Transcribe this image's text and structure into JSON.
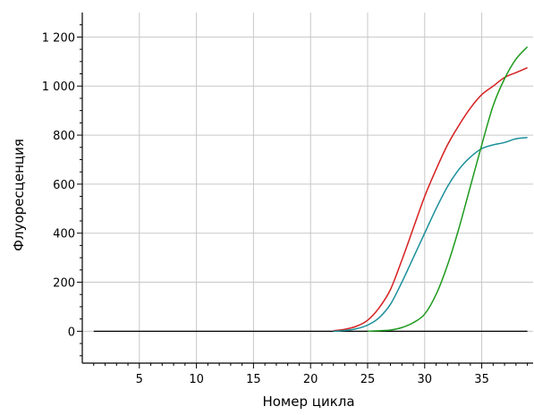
{
  "chart_data": {
    "type": "line",
    "title": "",
    "xlabel": "Номер цикла",
    "ylabel": "Флуоресценция",
    "xlim": [
      0,
      39.5
    ],
    "ylim": [
      -130,
      1300
    ],
    "x_ticks": [
      5,
      10,
      15,
      20,
      25,
      30,
      35
    ],
    "x_tick_labels": [
      "5",
      "10",
      "15",
      "20",
      "25",
      "30",
      "35"
    ],
    "y_ticks": [
      0,
      200,
      400,
      600,
      800,
      1000,
      1200
    ],
    "y_tick_labels": [
      "0",
      "200",
      "400",
      "600",
      "800",
      "1 000",
      "1 200"
    ],
    "grid": true,
    "baseline": {
      "y": 0,
      "x_from": 1,
      "x_to": 39,
      "color": "#000000"
    },
    "series": [
      {
        "color": "#d62020",
        "x": [
          22,
          23,
          24,
          25,
          26,
          27,
          28,
          29,
          30,
          31,
          32,
          33,
          34,
          35,
          36,
          37,
          38,
          39
        ],
        "values": [
          2,
          8,
          20,
          45,
          95,
          170,
          290,
          420,
          550,
          660,
          760,
          840,
          910,
          965,
          1000,
          1035,
          1055,
          1075
        ]
      },
      {
        "color": "#1a8f9a",
        "x": [
          22,
          23,
          24,
          25,
          26,
          27,
          28,
          29,
          30,
          31,
          32,
          33,
          34,
          35,
          36,
          37,
          38,
          39
        ],
        "values": [
          0,
          3,
          10,
          25,
          55,
          110,
          200,
          300,
          400,
          500,
          590,
          660,
          710,
          745,
          760,
          770,
          785,
          790
        ]
      },
      {
        "color": "#1f9a1f",
        "x": [
          25,
          26,
          27,
          28,
          29,
          30,
          31,
          32,
          33,
          34,
          35,
          36,
          37,
          38,
          39
        ],
        "values": [
          0,
          2,
          5,
          15,
          35,
          70,
          150,
          270,
          420,
          590,
          760,
          920,
          1030,
          1110,
          1160
        ]
      }
    ]
  }
}
